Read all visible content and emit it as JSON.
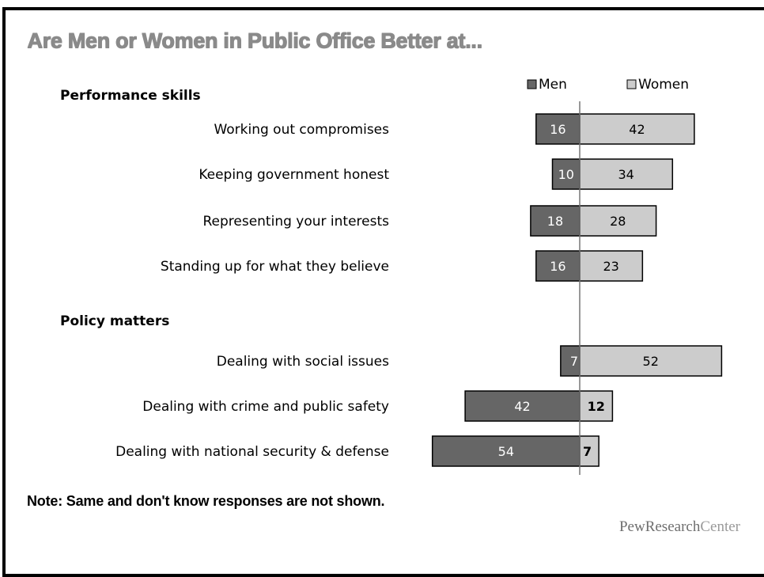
{
  "title": "Are Men or Women in Public Office Better at...",
  "note": "Note: Same and don't know responses are not shown.",
  "brand": {
    "part1": "PewResearch",
    "part2": "Center"
  },
  "chart_data": {
    "type": "bar",
    "orientation": "horizontal",
    "layout": "diverging",
    "legend": {
      "placement": "top-right",
      "entries": [
        "Men",
        "Women"
      ]
    },
    "colors": {
      "Men": "#666666",
      "Women": "#cccccc",
      "bar_border": "#000000",
      "axis": "#777777"
    },
    "groups": [
      {
        "label": "Performance skills",
        "categories": [
          "Working out compromises",
          "Keeping government honest",
          "Representing your interests",
          "Standing up for what they believe"
        ]
      },
      {
        "label": "Policy matters",
        "categories": [
          "Dealing with social issues",
          "Dealing with crime and public safety",
          "Dealing with national security & defense"
        ]
      }
    ],
    "categories": [
      "Working out compromises",
      "Keeping government honest",
      "Representing your interests",
      "Standing up for what they believe",
      "Dealing with social issues",
      "Dealing with crime and public safety",
      "Dealing with national security & defense"
    ],
    "series": [
      {
        "name": "Men",
        "values": [
          16,
          10,
          18,
          16,
          7,
          42,
          54
        ]
      },
      {
        "name": "Women",
        "values": [
          42,
          34,
          28,
          23,
          52,
          12,
          7
        ]
      }
    ]
  }
}
